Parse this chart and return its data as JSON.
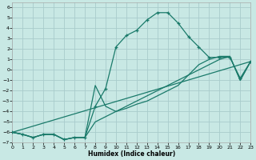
{
  "xlabel": "Humidex (Indice chaleur)",
  "bg_color": "#c8e8e4",
  "grid_color": "#a8cccc",
  "line_color": "#1a7a6a",
  "xlim": [
    0,
    23
  ],
  "ylim": [
    -7,
    6.5
  ],
  "yticks": [
    -7,
    -6,
    -5,
    -4,
    -3,
    -2,
    -1,
    0,
    1,
    2,
    3,
    4,
    5,
    6
  ],
  "xticks": [
    0,
    1,
    2,
    3,
    4,
    5,
    6,
    7,
    8,
    9,
    10,
    11,
    12,
    13,
    14,
    15,
    16,
    17,
    18,
    19,
    20,
    21,
    22,
    23
  ],
  "curve1_x": [
    0,
    1,
    2,
    3,
    4,
    5,
    6,
    7,
    8,
    9,
    10,
    11,
    12,
    13,
    14,
    15,
    16,
    17,
    18,
    19,
    20,
    21,
    22,
    23
  ],
  "curve1_y": [
    -6.0,
    -6.2,
    -6.5,
    -6.2,
    -6.2,
    -6.7,
    -6.5,
    -6.5,
    -3.5,
    -1.8,
    2.2,
    3.3,
    3.8,
    4.8,
    5.5,
    5.5,
    4.5,
    3.2,
    2.2,
    1.2,
    1.2,
    1.2,
    -0.8,
    0.8
  ],
  "curve2_x": [
    0,
    1,
    2,
    3,
    4,
    5,
    6,
    7,
    8,
    9,
    10,
    11,
    12,
    13,
    14,
    15,
    16,
    17,
    18,
    19,
    20,
    21,
    22,
    23
  ],
  "curve2_y": [
    -6.0,
    -6.2,
    -6.5,
    -6.2,
    -6.2,
    -6.7,
    -6.5,
    -6.5,
    -1.5,
    -3.5,
    -4.0,
    -3.7,
    -3.3,
    -3.0,
    -2.5,
    -2.0,
    -1.5,
    -0.5,
    0.5,
    1.0,
    1.3,
    1.3,
    -1.0,
    0.8
  ],
  "curve3_x": [
    0,
    23
  ],
  "curve3_y": [
    -6.0,
    0.8
  ],
  "curve4_x": [
    0,
    1,
    2,
    3,
    4,
    5,
    6,
    7,
    8,
    9,
    10,
    11,
    12,
    13,
    14,
    15,
    16,
    17,
    18,
    19,
    20,
    21,
    22,
    23
  ],
  "curve4_y": [
    -6.0,
    -6.2,
    -6.5,
    -6.2,
    -6.2,
    -6.7,
    -6.5,
    -6.5,
    -5.0,
    -4.5,
    -4.0,
    -3.5,
    -3.0,
    -2.5,
    -2.0,
    -1.5,
    -1.0,
    -0.5,
    0.0,
    0.5,
    1.0,
    1.3,
    -1.0,
    0.8
  ]
}
